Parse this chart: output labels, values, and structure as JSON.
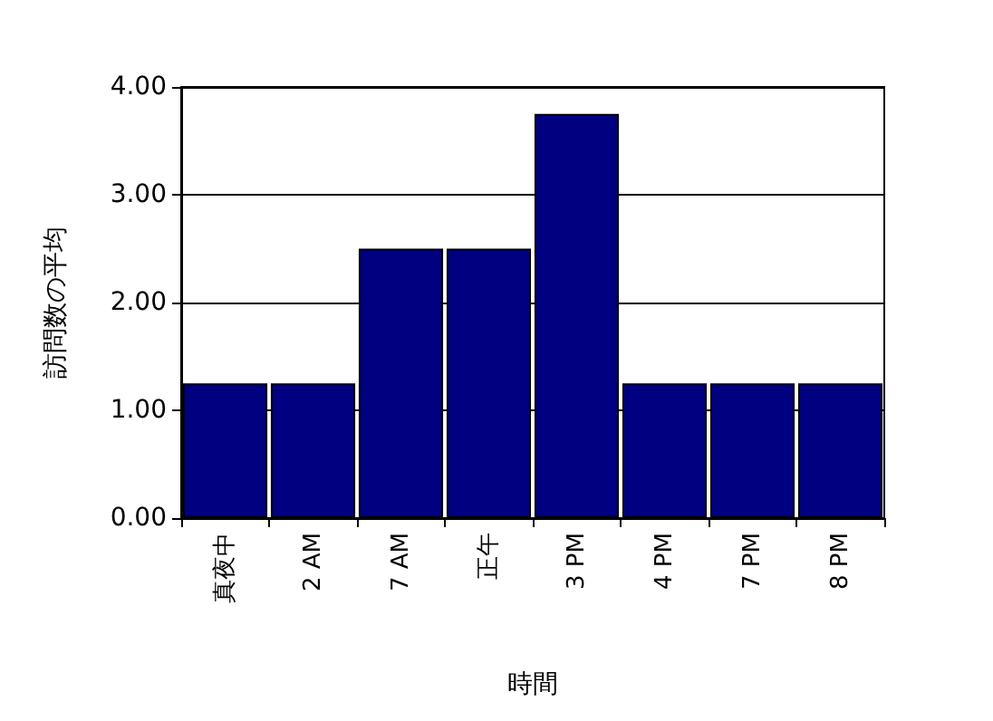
{
  "chart_data": {
    "type": "bar",
    "xlabel": "時間",
    "ylabel": "訪問数の平均",
    "categories": [
      "真夜中",
      "2 AM",
      "7 AM",
      "正午",
      "3 PM",
      "4 PM",
      "7 PM",
      "8 PM"
    ],
    "values": [
      1.25,
      1.25,
      2.5,
      2.5,
      3.75,
      1.25,
      1.25,
      1.25
    ],
    "color": "#000080",
    "ylim": [
      0,
      4
    ],
    "yticks": [
      {
        "value": 0,
        "label": "0.00"
      },
      {
        "value": 1,
        "label": "1.00"
      },
      {
        "value": 2,
        "label": "2.00"
      },
      {
        "value": 3,
        "label": "3.00"
      },
      {
        "value": 4,
        "label": "4.00"
      }
    ],
    "grid": "y"
  }
}
